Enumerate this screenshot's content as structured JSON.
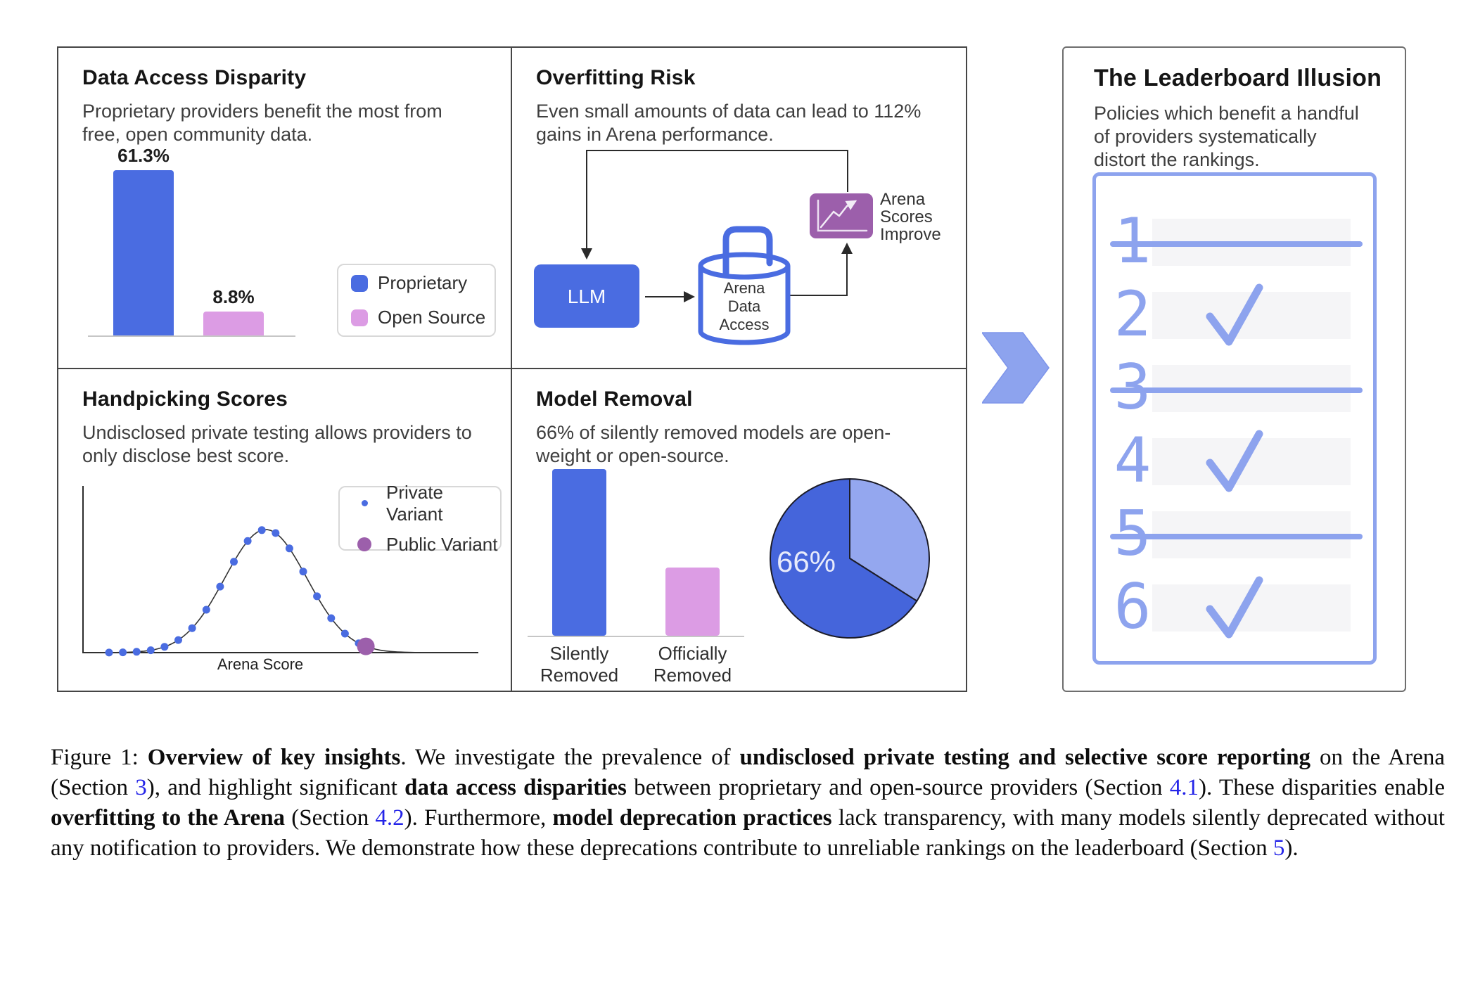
{
  "panels": {
    "data_access": {
      "title": "Data Access Disparity",
      "subtitle": "Proprietary providers benefit the most from\nfree, open community data.",
      "legend": [
        "Proprietary",
        "Open Source"
      ]
    },
    "overfitting": {
      "title": "Overfitting Risk",
      "subtitle": "Even small amounts of data can lead to 112%\ngains in Arena performance.",
      "llm_label": "LLM",
      "db_lines": [
        "Arena",
        "Data",
        "Access"
      ],
      "icon_lines": [
        "Arena",
        "Scores",
        "Improve"
      ]
    },
    "handpicking": {
      "title": "Handpicking Scores",
      "subtitle": "Undisclosed private testing allows providers to\nonly disclose best score.",
      "legend": [
        "Private Variant",
        "Public Variant"
      ],
      "xlabel": "Arena Score"
    },
    "model_removal": {
      "title": "Model Removal",
      "subtitle": "66% of silently removed models are open-\nweight or open-source."
    }
  },
  "leaderboard": {
    "title": "The Leaderboard Illusion",
    "subtitle": "Policies which benefit a handful\nof providers systematically\ndistort the rankings.",
    "rows": [
      {
        "rank": "1",
        "status": "struck"
      },
      {
        "rank": "2",
        "status": "check"
      },
      {
        "rank": "3",
        "status": "struck"
      },
      {
        "rank": "4",
        "status": "check"
      },
      {
        "rank": "5",
        "status": "struck"
      },
      {
        "rank": "6",
        "status": "check"
      }
    ]
  },
  "caption": {
    "segments": [
      {
        "t": "Figure 1: "
      },
      {
        "t": "Overview of key insights",
        "b": true
      },
      {
        "t": ". We investigate the prevalence of "
      },
      {
        "t": "undisclosed private testing and selective score reporting",
        "b": true
      },
      {
        "t": " on the Arena (Section "
      },
      {
        "t": "3",
        "link": true
      },
      {
        "t": "), and highlight significant "
      },
      {
        "t": "data access disparities",
        "b": true
      },
      {
        "t": " between proprietary and open-source providers (Section "
      },
      {
        "t": "4.1",
        "link": true
      },
      {
        "t": "). These disparities enable "
      },
      {
        "t": "overfitting to the Arena",
        "b": true
      },
      {
        "t": " (Section "
      },
      {
        "t": "4.2",
        "link": true
      },
      {
        "t": "). Furthermore, "
      },
      {
        "t": "model deprecation practices",
        "b": true
      },
      {
        "t": " lack transparency, with many models silently deprecated without any notification to providers. We demonstrate how these deprecations contribute to unreliable rankings on the leaderboard (Section "
      },
      {
        "t": "5",
        "link": true
      },
      {
        "t": ")."
      }
    ]
  },
  "colors": {
    "blue": "#4a6ce1",
    "pink": "#dc9ce4",
    "purple": "#9c5fab",
    "periwinkle": "#8da3ee",
    "pie_dark": "#4565db",
    "pie_light": "#94a7ef",
    "link_blue": "#2424e8"
  },
  "chart_data": [
    {
      "id": "data-access-bars",
      "type": "bar",
      "title": "Data Access Disparity",
      "categories": [
        "Proprietary",
        "Open Source"
      ],
      "values": [
        61.3,
        8.8
      ],
      "unit": "%",
      "value_labels": [
        "61.3%",
        "8.8%"
      ],
      "colors": [
        "#4a6ce1",
        "#dc9ce4"
      ],
      "legend": [
        "Proprietary",
        "Open Source"
      ],
      "legend_position": "right",
      "axes": "no ticks, baseline only"
    },
    {
      "id": "handpicking-distribution",
      "type": "line",
      "title": "Handpicking Scores",
      "xlabel": "Arena Score",
      "description": "Bell-shaped distribution of private-variant Arena scores; small blue dots mark private variants along the curve, one large purple dot on the right tail marks the single disclosed public variant (best score).",
      "series": [
        {
          "name": "Private Variant",
          "marker": "small blue dot",
          "dots_x_norm": [
            0.066,
            0.101,
            0.136,
            0.172,
            0.207,
            0.242,
            0.277,
            0.313,
            0.348,
            0.383,
            0.418,
            0.454,
            0.489,
            0.524,
            0.559,
            0.594,
            0.63,
            0.665,
            0.7
          ]
        },
        {
          "name": "Public Variant",
          "marker": "large purple dot",
          "dots_x_norm": [
            0.718
          ]
        }
      ],
      "curve": {
        "shape": "gaussian",
        "center_norm": 0.464,
        "sigma_norm": 0.104,
        "peak_norm": 1.0
      },
      "axis_ticks": "none (qualitative axes)"
    },
    {
      "id": "model-removal-bars",
      "type": "bar",
      "title": "Model Removal",
      "categories": [
        "Silently\nRemoved",
        "Officially\nRemoved"
      ],
      "values": [
        100,
        41
      ],
      "unit": "relative height (bars unlabeled in figure)",
      "colors": [
        "#4a6ce1",
        "#dc9ce4"
      ],
      "axes": "no ticks, baseline only"
    },
    {
      "id": "model-removal-pie",
      "type": "pie",
      "title": "Model Removal share",
      "slices": [
        {
          "label": "66%",
          "value": 66,
          "color": "#4565db",
          "label_color": "#e8ebfb"
        },
        {
          "label": "",
          "value": 34,
          "color": "#94a7ef"
        }
      ],
      "start_angle_deg": 0,
      "note": "light slice (34%) starts at 12 o'clock going clockwise; dark 66% slice labeled in white"
    }
  ]
}
